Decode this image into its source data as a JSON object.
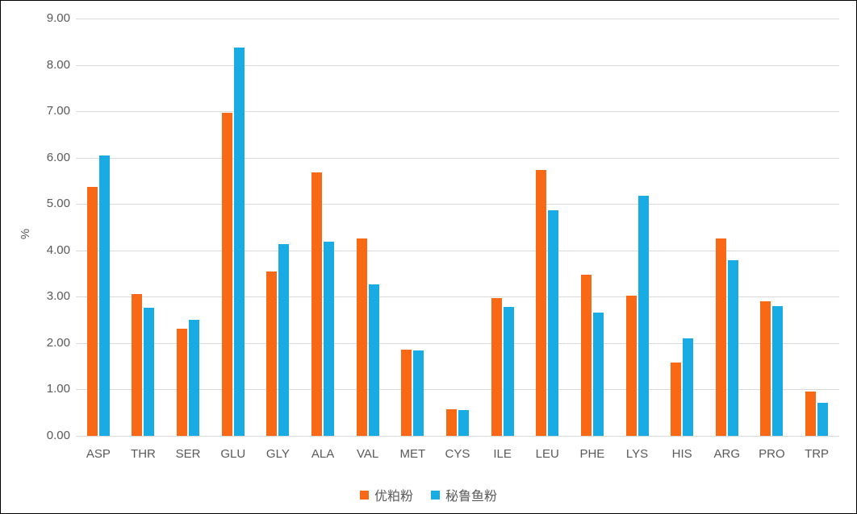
{
  "chart_data": {
    "type": "bar",
    "title": "",
    "xlabel": "",
    "ylabel": "%",
    "ymax": 9,
    "ylim": [
      0,
      9
    ],
    "grid": true,
    "legend_position": "bottom",
    "yticks": [
      "9.00",
      "8.00",
      "7.00",
      "6.00",
      "5.00",
      "4.00",
      "3.00",
      "2.00",
      "1.00",
      "0.00"
    ],
    "categories": [
      "ASP",
      "THR",
      "SER",
      "GLU",
      "GLY",
      "ALA",
      "VAL",
      "MET",
      "CYS",
      "ILE",
      "LEU",
      "PHE",
      "LYS",
      "HIS",
      "ARG",
      "PRO",
      "TRP"
    ],
    "series": [
      {
        "name": "优粕粉",
        "color": "#F96815",
        "values": [
          5.37,
          3.05,
          2.31,
          6.97,
          3.54,
          5.68,
          4.25,
          1.86,
          0.57,
          2.98,
          5.74,
          3.47,
          3.02,
          1.58,
          4.25,
          2.91,
          0.96
        ]
      },
      {
        "name": "秘鲁鱼粉",
        "color": "#19ACE4",
        "values": [
          6.05,
          2.77,
          2.51,
          8.37,
          4.13,
          4.18,
          3.26,
          1.84,
          0.56,
          2.78,
          4.86,
          2.66,
          5.18,
          2.1,
          3.79,
          2.79,
          0.72
        ]
      }
    ],
    "colors": {
      "gridline": "#d9d9d9",
      "text": "#595959",
      "border": "#000000"
    }
  }
}
